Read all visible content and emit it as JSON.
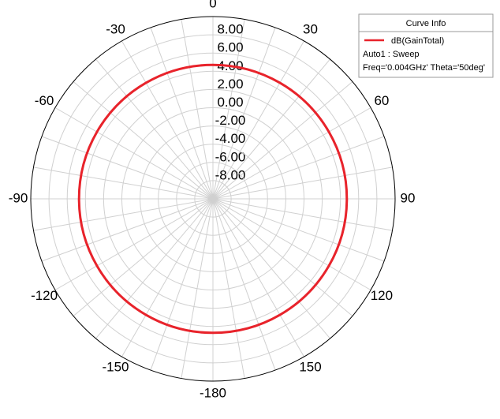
{
  "chart_data": {
    "type": "polar",
    "theta": [
      0,
      30,
      60,
      90,
      120,
      150,
      180,
      210,
      240,
      270,
      300,
      330,
      360
    ],
    "series": [
      {
        "name": "dB(GainTotal)",
        "color": "#e8232b",
        "values": [
          4.7,
          4.7,
          4.7,
          4.7,
          4.7,
          4.7,
          4.7,
          4.7,
          4.7,
          4.7,
          4.7,
          4.7,
          4.7
        ]
      }
    ],
    "rlim": [
      -10,
      10
    ],
    "rticks": [
      {
        "value": -8,
        "label": "-8.00"
      },
      {
        "value": -6,
        "label": "-6.00"
      },
      {
        "value": -4,
        "label": "-4.00"
      },
      {
        "value": -2,
        "label": "-2.00"
      },
      {
        "value": 0,
        "label": "0.00"
      },
      {
        "value": 2,
        "label": "2.00"
      },
      {
        "value": 4,
        "label": "4.00"
      },
      {
        "value": 6,
        "label": "6.00"
      },
      {
        "value": 8,
        "label": "8.00"
      }
    ],
    "thetaticks": [
      0,
      30,
      60,
      90,
      120,
      150,
      -180,
      -150,
      -120,
      -90,
      -60,
      -30
    ],
    "theta_grid_step": 10,
    "legend": {
      "title": "Curve Info",
      "lines": [
        "Auto1 : Sweep",
        "Freq='0.004GHz' Theta='50deg'"
      ]
    }
  }
}
